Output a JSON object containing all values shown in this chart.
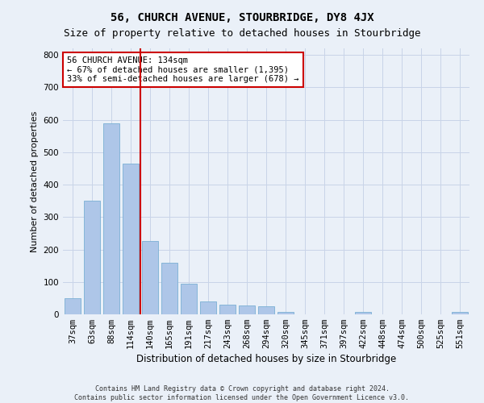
{
  "title": "56, CHURCH AVENUE, STOURBRIDGE, DY8 4JX",
  "subtitle": "Size of property relative to detached houses in Stourbridge",
  "xlabel": "Distribution of detached houses by size in Stourbridge",
  "ylabel": "Number of detached properties",
  "footnote1": "Contains HM Land Registry data © Crown copyright and database right 2024.",
  "footnote2": "Contains public sector information licensed under the Open Government Licence v3.0.",
  "categories": [
    "37sqm",
    "63sqm",
    "88sqm",
    "114sqm",
    "140sqm",
    "165sqm",
    "191sqm",
    "217sqm",
    "243sqm",
    "268sqm",
    "294sqm",
    "320sqm",
    "345sqm",
    "371sqm",
    "397sqm",
    "422sqm",
    "448sqm",
    "474sqm",
    "500sqm",
    "525sqm",
    "551sqm"
  ],
  "values": [
    50,
    350,
    590,
    465,
    225,
    160,
    95,
    40,
    30,
    28,
    25,
    8,
    0,
    0,
    0,
    8,
    0,
    0,
    0,
    0,
    8
  ],
  "bar_color": "#aec6e8",
  "bar_edge_color": "#7aafd4",
  "grid_color": "#c8d4e8",
  "background_color": "#eaf0f8",
  "vline_color": "#cc0000",
  "vline_x": 3.5,
  "annotation_text": "56 CHURCH AVENUE: 134sqm\n← 67% of detached houses are smaller (1,395)\n33% of semi-detached houses are larger (678) →",
  "annotation_box_color": "#ffffff",
  "annotation_box_edge_color": "#cc0000",
  "ylim": [
    0,
    820
  ],
  "yticks": [
    0,
    100,
    200,
    300,
    400,
    500,
    600,
    700,
    800
  ],
  "title_fontsize": 10,
  "subtitle_fontsize": 9,
  "xlabel_fontsize": 8.5,
  "ylabel_fontsize": 8,
  "tick_fontsize": 7.5,
  "annotation_fontsize": 7.5,
  "footnote_fontsize": 6
}
